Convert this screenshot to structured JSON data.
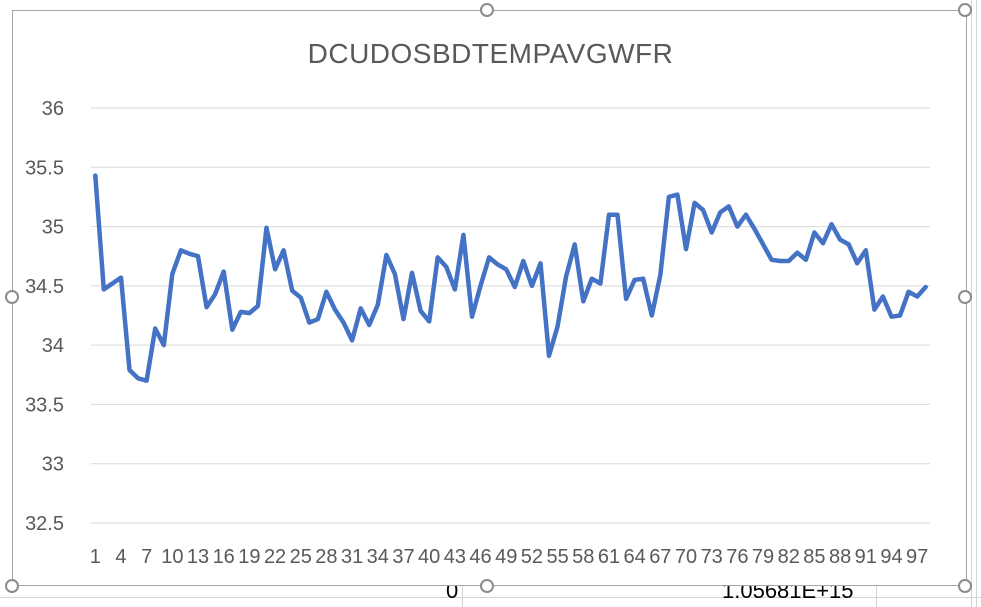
{
  "sheet": {
    "cell_left": "0",
    "cell_right": "1.05681E+15"
  },
  "chart_data": {
    "type": "line",
    "title": "DCUDOSBDTEMPAVGWFR",
    "xlabel": "",
    "ylabel": "",
    "ylim": [
      32.5,
      36
    ],
    "y_ticks": [
      "32.5",
      "33",
      "33.5",
      "34",
      "34.5",
      "35",
      "35.5",
      "36"
    ],
    "x_tick_labels": [
      "1",
      "4",
      "7",
      "10",
      "13",
      "16",
      "19",
      "22",
      "25",
      "28",
      "31",
      "34",
      "37",
      "40",
      "43",
      "46",
      "49",
      "52",
      "55",
      "58",
      "61",
      "64",
      "67",
      "70",
      "73",
      "76",
      "79",
      "82",
      "85",
      "88",
      "91",
      "94",
      "97"
    ],
    "grid": true,
    "legend": "none",
    "line_color": "#4472c4",
    "x": [
      1,
      2,
      3,
      4,
      5,
      6,
      7,
      8,
      9,
      10,
      11,
      12,
      13,
      14,
      15,
      16,
      17,
      18,
      19,
      20,
      21,
      22,
      23,
      24,
      25,
      26,
      27,
      28,
      29,
      30,
      31,
      32,
      33,
      34,
      35,
      36,
      37,
      38,
      39,
      40,
      41,
      42,
      43,
      44,
      45,
      46,
      47,
      48,
      49,
      50,
      51,
      52,
      53,
      54,
      55,
      56,
      57,
      58,
      59,
      60,
      61,
      62,
      63,
      64,
      65,
      66,
      67,
      68,
      69,
      70,
      71,
      72,
      73,
      74,
      75,
      76,
      77,
      78,
      79,
      80,
      81,
      82,
      83,
      84,
      85,
      86,
      87,
      88,
      89,
      90,
      91,
      92,
      93,
      94,
      95,
      96,
      97,
      98
    ],
    "series": [
      {
        "values": [
          35.43,
          34.47,
          34.52,
          34.57,
          33.79,
          33.72,
          33.7,
          34.14,
          34.0,
          34.6,
          34.8,
          34.77,
          34.75,
          34.32,
          34.43,
          34.62,
          34.13,
          34.28,
          34.27,
          34.33,
          34.99,
          34.64,
          34.8,
          34.46,
          34.4,
          34.19,
          34.22,
          34.45,
          34.3,
          34.19,
          34.04,
          34.31,
          34.17,
          34.34,
          34.76,
          34.6,
          34.22,
          34.61,
          34.29,
          34.2,
          34.74,
          34.66,
          34.47,
          34.93,
          34.24,
          34.5,
          34.74,
          34.68,
          34.64,
          34.49,
          34.71,
          34.5,
          34.69,
          33.91,
          34.16,
          34.58,
          34.85,
          34.37,
          34.56,
          34.52,
          35.1,
          35.1,
          34.39,
          34.55,
          34.56,
          34.25,
          34.59,
          35.25,
          35.27,
          34.81,
          35.2,
          35.14,
          34.95,
          35.12,
          35.17,
          35.0,
          35.1,
          34.98,
          34.85,
          34.72,
          34.71,
          34.71,
          34.78,
          34.72,
          34.95,
          34.86,
          35.02,
          34.89,
          34.85,
          34.69,
          34.8,
          34.3,
          34.41,
          34.24,
          34.25,
          34.45,
          34.41,
          34.49
        ]
      }
    ]
  }
}
